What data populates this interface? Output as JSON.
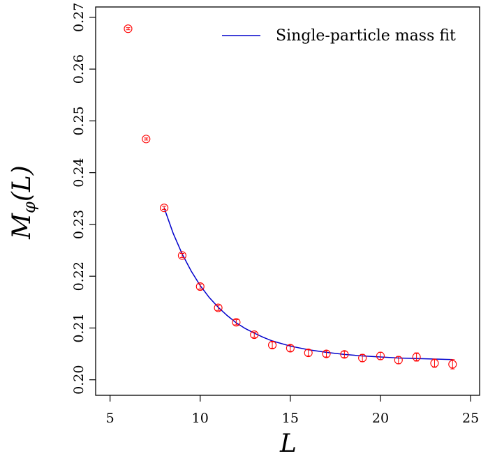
{
  "chart_data": {
    "type": "scatter",
    "xlabel": "L",
    "ylabel": {
      "main": "M",
      "sub": "φ",
      "arg": "(L)"
    },
    "xlim": [
      4.2,
      25.5
    ],
    "ylim": [
      0.197,
      0.272
    ],
    "x_ticks": [
      5,
      10,
      15,
      20,
      25
    ],
    "y_ticks": [
      0.2,
      0.21,
      0.22,
      0.23,
      0.24,
      0.25,
      0.26,
      0.27
    ],
    "y_tick_labels": [
      "0.20",
      "0.21",
      "0.22",
      "0.23",
      "0.24",
      "0.25",
      "0.26",
      "0.27"
    ],
    "grid": false,
    "legend_position": "top-right",
    "legend_entries": [
      "Single-particle mass fit"
    ],
    "points": {
      "color": "#ff0000",
      "x": [
        6,
        7,
        8,
        9,
        10,
        11,
        12,
        13,
        14,
        15,
        16,
        17,
        18,
        19,
        20,
        21,
        22,
        23,
        24
      ],
      "y": [
        0.2678,
        0.2465,
        0.2332,
        0.224,
        0.218,
        0.2139,
        0.2111,
        0.2087,
        0.2067,
        0.2061,
        0.2052,
        0.205,
        0.2049,
        0.2042,
        0.2046,
        0.2038,
        0.2044,
        0.2032,
        0.203
      ],
      "err": [
        0.0002,
        0.0002,
        0.0003,
        0.0004,
        0.0005,
        0.0005,
        0.0005,
        0.0005,
        0.0006,
        0.0006,
        0.0006,
        0.0006,
        0.0006,
        0.0007,
        0.0007,
        0.0007,
        0.0008,
        0.0008,
        0.0009
      ]
    },
    "fit": {
      "color": "#0000cc",
      "x": [
        8.0,
        8.5,
        9.0,
        9.5,
        10.0,
        10.5,
        11.0,
        11.5,
        12.0,
        12.5,
        13.0,
        13.5,
        14.0,
        15.0,
        16.0,
        17.0,
        18.0,
        19.0,
        20.0,
        21.0,
        22.0,
        23.0,
        24.0
      ],
      "y": [
        0.2332,
        0.2283,
        0.2243,
        0.221,
        0.2182,
        0.2159,
        0.214,
        0.2124,
        0.211,
        0.2099,
        0.209,
        0.2082,
        0.2075,
        0.2065,
        0.2058,
        0.2053,
        0.2049,
        0.2046,
        0.2044,
        0.2042,
        0.2041,
        0.204,
        0.2039
      ]
    }
  }
}
